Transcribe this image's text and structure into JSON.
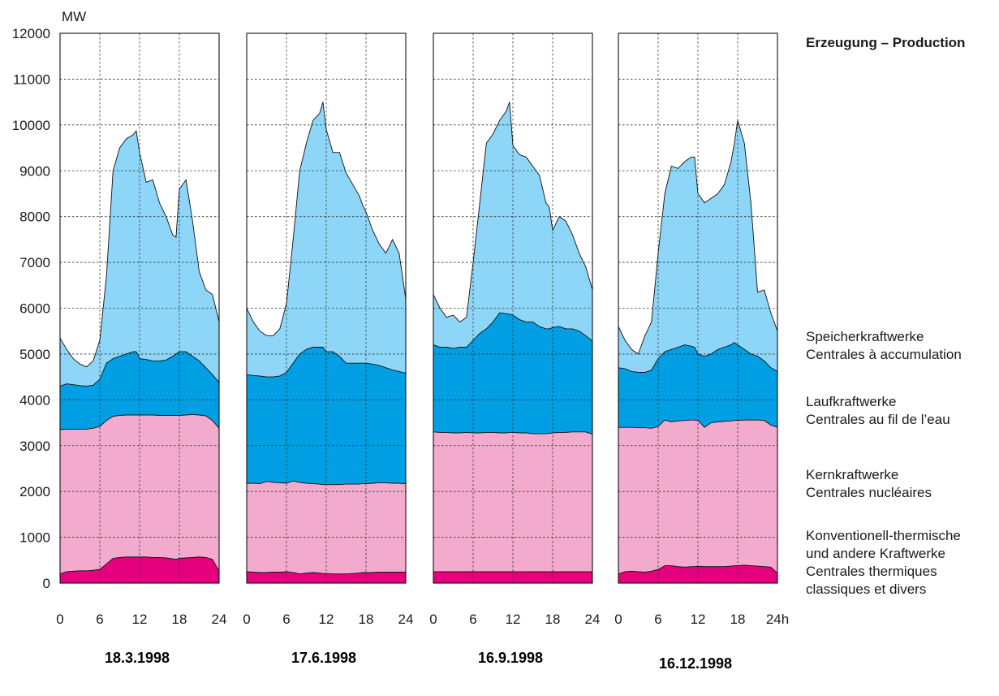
{
  "chart_data": {
    "type": "area",
    "stacked": true,
    "title": "Erzeugung – Production",
    "ylabel": "MW",
    "ylim": [
      0,
      12000
    ],
    "y_ticks": [
      0,
      1000,
      2000,
      3000,
      4000,
      5000,
      6000,
      7000,
      8000,
      9000,
      10000,
      11000,
      12000
    ],
    "y_tick_labels": [
      "0",
      "1000",
      "2000",
      "3000",
      "4000",
      "5000",
      "6000",
      "7000",
      "8000",
      "9000",
      "10000",
      "11000",
      "12000"
    ],
    "xlim": [
      0,
      24
    ],
    "x_ticks": [
      0,
      6,
      12,
      18,
      24
    ],
    "x_tick_labels": [
      [
        "0",
        "6",
        "12",
        "18",
        "24"
      ],
      [
        "0",
        "6",
        "12",
        "18",
        "24"
      ],
      [
        "0",
        "6",
        "12",
        "18",
        "24"
      ],
      [
        "0",
        "6",
        "12",
        "18",
        "24h"
      ]
    ],
    "grid": true,
    "colors": {
      "thermal": "#e5007e",
      "nuclear": "#f2aacd",
      "run_of_river": "#009fe3",
      "storage": "#8dd6f7"
    },
    "legend": [
      {
        "key": "storage",
        "lines": [
          "Speicherkraftwerke",
          "Centrales à accumulation"
        ]
      },
      {
        "key": "run_of_river",
        "lines": [
          "Laufkraftwerke",
          "Centrales au fil de l’eau"
        ]
      },
      {
        "key": "nuclear",
        "lines": [
          "Kernkraftwerke",
          "Centrales nucléaires"
        ]
      },
      {
        "key": "thermal",
        "lines": [
          "Konventionell-thermische",
          "und andere Kraftwerke",
          "Centrales thermiques",
          "classiques et divers"
        ]
      }
    ],
    "panels": [
      {
        "date": "18.3.1998",
        "x": [
          0,
          1,
          2,
          3,
          4,
          5,
          6,
          7,
          8,
          9,
          10,
          11,
          11.5,
          12,
          13,
          14,
          15,
          16,
          17,
          17.5,
          18,
          19,
          20,
          21,
          22,
          23,
          24
        ],
        "thermal": [
          200,
          250,
          260,
          270,
          270,
          280,
          300,
          420,
          540,
          560,
          570,
          570,
          570,
          570,
          570,
          560,
          560,
          550,
          530,
          520,
          540,
          550,
          560,
          570,
          560,
          520,
          260
        ],
        "cum_nuclear": [
          3350,
          3360,
          3360,
          3360,
          3360,
          3380,
          3420,
          3550,
          3640,
          3660,
          3670,
          3670,
          3670,
          3670,
          3670,
          3670,
          3660,
          3660,
          3660,
          3660,
          3660,
          3670,
          3680,
          3670,
          3650,
          3550,
          3380
        ],
        "cum_river": [
          4300,
          4350,
          4330,
          4310,
          4300,
          4320,
          4450,
          4800,
          4900,
          4950,
          5000,
          5050,
          5050,
          4900,
          4880,
          4850,
          4850,
          4870,
          4950,
          5000,
          5050,
          5050,
          4950,
          4850,
          4700,
          4550,
          4380
        ],
        "cum_storage": [
          5350,
          5100,
          4900,
          4780,
          4720,
          4850,
          5300,
          6700,
          9000,
          9500,
          9700,
          9780,
          9870,
          9400,
          8750,
          8800,
          8300,
          8000,
          7600,
          7550,
          8600,
          8800,
          7900,
          6800,
          6400,
          6300,
          5700
        ]
      },
      {
        "date": "17.6.1998",
        "x": [
          0,
          1,
          2,
          3,
          4,
          5,
          6,
          7,
          8,
          9,
          10,
          11,
          11.5,
          12,
          13,
          14,
          15,
          16,
          17,
          17.5,
          18,
          19,
          20,
          21,
          22,
          23,
          24
        ],
        "thermal": [
          250,
          240,
          230,
          230,
          240,
          240,
          250,
          230,
          200,
          220,
          230,
          220,
          210,
          210,
          200,
          200,
          200,
          210,
          220,
          230,
          230,
          230,
          240,
          240,
          240,
          240,
          240
        ],
        "cum_nuclear": [
          2180,
          2180,
          2170,
          2220,
          2200,
          2190,
          2180,
          2230,
          2200,
          2180,
          2170,
          2160,
          2150,
          2150,
          2150,
          2150,
          2160,
          2160,
          2160,
          2170,
          2170,
          2180,
          2190,
          2190,
          2180,
          2180,
          2170
        ],
        "cum_river": [
          4550,
          4530,
          4520,
          4500,
          4500,
          4520,
          4600,
          4800,
          5000,
          5100,
          5150,
          5150,
          5150,
          5050,
          5050,
          4950,
          4800,
          4800,
          4800,
          4800,
          4800,
          4780,
          4750,
          4700,
          4650,
          4620,
          4580
        ],
        "cum_storage": [
          6000,
          5700,
          5500,
          5400,
          5400,
          5550,
          6100,
          7500,
          9000,
          9600,
          10100,
          10250,
          10500,
          9900,
          9400,
          9400,
          8950,
          8700,
          8450,
          8250,
          8100,
          7700,
          7400,
          7200,
          7500,
          7200,
          6200
        ]
      },
      {
        "date": "16.9.1998",
        "x": [
          0,
          1,
          2,
          3,
          4,
          5,
          6,
          7,
          8,
          9,
          10,
          11,
          11.5,
          12,
          13,
          14,
          15,
          16,
          17,
          17.5,
          18,
          19,
          20,
          21,
          22,
          23,
          24
        ],
        "thermal": [
          250,
          250,
          250,
          250,
          250,
          250,
          250,
          250,
          250,
          250,
          250,
          250,
          250,
          250,
          250,
          250,
          250,
          250,
          250,
          250,
          250,
          250,
          250,
          250,
          250,
          250,
          250
        ],
        "cum_nuclear": [
          3300,
          3290,
          3290,
          3280,
          3280,
          3290,
          3280,
          3280,
          3290,
          3290,
          3280,
          3280,
          3290,
          3290,
          3280,
          3280,
          3260,
          3260,
          3260,
          3270,
          3280,
          3290,
          3290,
          3300,
          3300,
          3300,
          3250
        ],
        "cum_river": [
          5200,
          5150,
          5150,
          5120,
          5150,
          5150,
          5300,
          5450,
          5550,
          5700,
          5900,
          5880,
          5870,
          5850,
          5750,
          5700,
          5700,
          5600,
          5550,
          5550,
          5580,
          5600,
          5550,
          5550,
          5500,
          5400,
          5280
        ],
        "cum_storage": [
          6300,
          6000,
          5800,
          5850,
          5700,
          5800,
          7000,
          8300,
          9600,
          9800,
          10100,
          10300,
          10500,
          9550,
          9350,
          9300,
          9100,
          8900,
          8300,
          8200,
          7700,
          8000,
          7900,
          7600,
          7200,
          6900,
          6400
        ]
      },
      {
        "date": "16.12.1998",
        "x": [
          0,
          1,
          2,
          3,
          4,
          5,
          6,
          7,
          8,
          9,
          10,
          11,
          11.5,
          12,
          13,
          14,
          15,
          16,
          17,
          17.5,
          18,
          19,
          20,
          21,
          22,
          23,
          24
        ],
        "thermal": [
          200,
          250,
          260,
          250,
          240,
          260,
          300,
          380,
          380,
          360,
          350,
          360,
          360,
          370,
          360,
          360,
          360,
          360,
          370,
          380,
          380,
          390,
          380,
          370,
          360,
          350,
          220
        ],
        "cum_nuclear": [
          3400,
          3400,
          3400,
          3390,
          3390,
          3380,
          3420,
          3560,
          3520,
          3540,
          3550,
          3560,
          3560,
          3550,
          3400,
          3500,
          3520,
          3530,
          3540,
          3550,
          3550,
          3560,
          3560,
          3560,
          3550,
          3450,
          3400
        ],
        "cum_river": [
          4700,
          4680,
          4620,
          4600,
          4600,
          4650,
          4900,
          5050,
          5100,
          5150,
          5200,
          5170,
          5150,
          5000,
          4950,
          5000,
          5100,
          5150,
          5200,
          5250,
          5200,
          5100,
          5000,
          4950,
          4850,
          4700,
          4620
        ],
        "cum_storage": [
          5600,
          5300,
          5100,
          5000,
          5400,
          5700,
          7200,
          8500,
          9100,
          9050,
          9200,
          9300,
          9300,
          8500,
          8300,
          8400,
          8500,
          8700,
          9200,
          9600,
          10100,
          9600,
          8300,
          6350,
          6400,
          5900,
          5500
        ]
      }
    ]
  }
}
